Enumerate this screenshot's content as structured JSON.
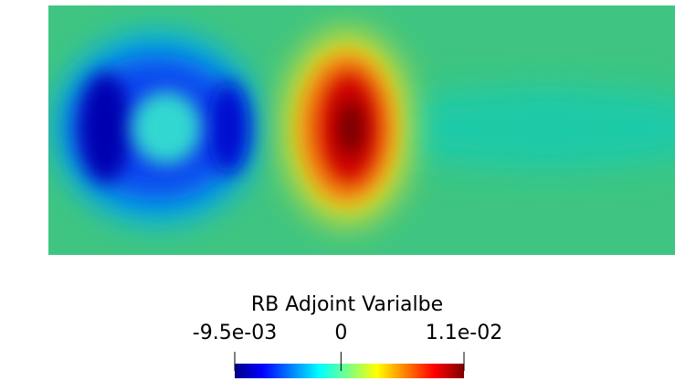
{
  "colorbar": {
    "title": "RB Adjoint Varialbe",
    "range": [
      -0.0095,
      0.011
    ],
    "ticks": [
      {
        "value": -0.0095,
        "label": "-9.5e-03"
      },
      {
        "value": 0,
        "label": "0"
      },
      {
        "value": 0.011,
        "label": "1.1e-02"
      }
    ]
  }
}
